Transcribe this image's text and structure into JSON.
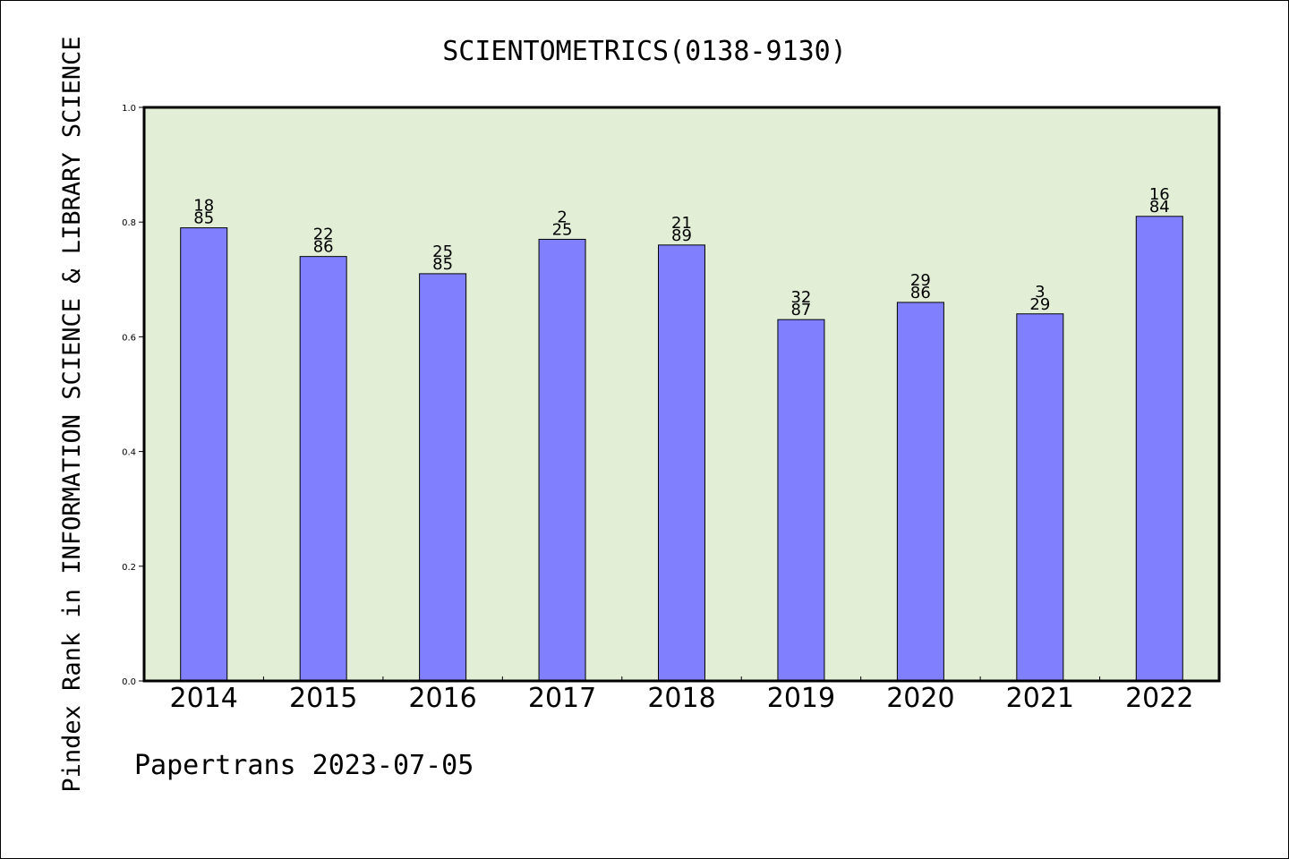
{
  "chart_data": {
    "type": "bar",
    "title": "SCIENTOMETRICS(0138-9130)",
    "ylabel": "Pindex Rank in INFORMATION SCIENCE & LIBRARY SCIENCE",
    "xlabel": "",
    "categories": [
      "2014",
      "2015",
      "2016",
      "2017",
      "2018",
      "2019",
      "2020",
      "2021",
      "2022"
    ],
    "values": [
      0.79,
      0.74,
      0.71,
      0.77,
      0.76,
      0.63,
      0.66,
      0.64,
      0.81
    ],
    "rank": [
      "18",
      "22",
      "25",
      "2",
      "21",
      "32",
      "29",
      "3",
      "16"
    ],
    "total": [
      "85",
      "86",
      "85",
      "25",
      "89",
      "87",
      "86",
      "29",
      "84"
    ],
    "ylim": [
      0,
      1.0
    ],
    "yticks": [
      "0.0",
      "0.2",
      "0.4",
      "0.6",
      "0.8",
      "1.0"
    ],
    "grid": false,
    "legend": "none",
    "colors": {
      "bar": "#8080ff",
      "plot_background": "#e2efd6",
      "axes": "#000000"
    }
  },
  "footer": {
    "text": "Papertrans 2023-07-05"
  }
}
